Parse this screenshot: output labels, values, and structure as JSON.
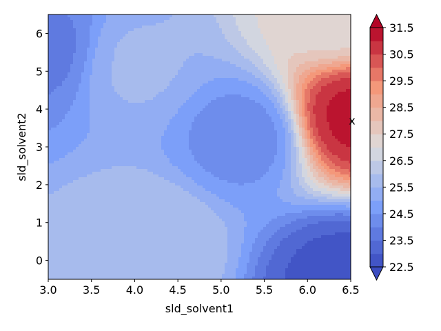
{
  "chart_data": {
    "type": "contour",
    "xlabel": "sld_solvent1",
    "ylabel": "sld_solvent2",
    "xlim": [
      3.0,
      6.5
    ],
    "ylim": [
      -0.5,
      6.5
    ],
    "x_ticks": [
      "3.0",
      "3.5",
      "4.0",
      "4.5",
      "5.0",
      "5.5",
      "6.0",
      "6.5"
    ],
    "y_ticks": [
      "0",
      "1",
      "2",
      "3",
      "4",
      "5",
      "6"
    ],
    "colormap": "coolwarm",
    "colorbar": {
      "min": 22.5,
      "max": 31.5,
      "extend": "both",
      "levels": 18,
      "tick_values": [
        22.5,
        23.5,
        24.5,
        25.5,
        26.5,
        27.5,
        28.5,
        29.5,
        30.5,
        31.5
      ],
      "tick_labels": [
        "22.5",
        "23.5",
        "24.5",
        "25.5",
        "26.5",
        "27.5",
        "28.5",
        "29.5",
        "30.5",
        "31.5"
      ]
    },
    "marker": {
      "label": "x",
      "x": 6.5,
      "y": 3.7
    },
    "field_features": [
      {
        "kind": "peak",
        "x": 6.5,
        "y": 3.8,
        "z": 31.2
      },
      {
        "kind": "peak",
        "x": 6.3,
        "y": 6.5,
        "z": 27.2
      },
      {
        "kind": "plateau",
        "x": 4.2,
        "y": 0.4,
        "z": 26.0
      },
      {
        "kind": "plateau",
        "x": 3.9,
        "y": 5.2,
        "z": 25.6
      },
      {
        "kind": "valley",
        "x": 6.4,
        "y": -0.4,
        "z": 22.8
      },
      {
        "kind": "valley",
        "x": 3.05,
        "y": 5.5,
        "z": 23.8
      },
      {
        "kind": "valley",
        "x": 5.3,
        "y": 3.3,
        "z": 24.2
      }
    ],
    "grid": false,
    "legend": "colorbar-right"
  }
}
